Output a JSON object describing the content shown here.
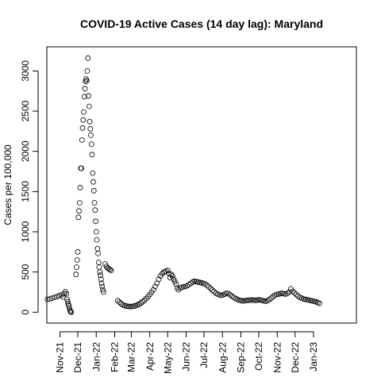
{
  "chart_data": {
    "type": "scatter",
    "title": "COVID-19 Active Cases (14 day lag): Maryland",
    "xlabel": "",
    "ylabel": "Cases per 100,000",
    "x_is_date": true,
    "xlim": [
      "2021-10-10",
      "2023-03-14"
    ],
    "ylim": [
      -135,
      3300
    ],
    "x_ticks": [
      {
        "label": "Nov-21",
        "date": "2021-11-01"
      },
      {
        "label": "Dec-21",
        "date": "2021-12-01"
      },
      {
        "label": "Jan-22",
        "date": "2022-01-01"
      },
      {
        "label": "Feb-22",
        "date": "2022-02-01"
      },
      {
        "label": "Mar-22",
        "date": "2022-03-01"
      },
      {
        "label": "Apr-22",
        "date": "2022-04-01"
      },
      {
        "label": "May-22",
        "date": "2022-05-01"
      },
      {
        "label": "Jun-22",
        "date": "2022-06-01"
      },
      {
        "label": "Jul-22",
        "date": "2022-07-01"
      },
      {
        "label": "Aug-22",
        "date": "2022-08-01"
      },
      {
        "label": "Sep-22",
        "date": "2022-09-01"
      },
      {
        "label": "Oct-22",
        "date": "2022-10-01"
      },
      {
        "label": "Nov-22",
        "date": "2022-11-01"
      },
      {
        "label": "Dec-22",
        "date": "2022-12-01"
      },
      {
        "label": "Jan-23",
        "date": "2023-01-01"
      }
    ],
    "y_ticks": [
      0,
      500,
      1000,
      1500,
      2000,
      2500,
      3000
    ],
    "y_tick_labels": [
      "0",
      "500",
      "1000",
      "1500",
      "2000",
      "2500",
      "3000"
    ],
    "grid": false,
    "legend": "none",
    "marker": "open-circle",
    "series": [
      {
        "values": [
          [
            "2021-10-11",
            160
          ],
          [
            "2021-10-15",
            165
          ],
          [
            "2021-10-19",
            175
          ],
          [
            "2021-10-23",
            185
          ],
          [
            "2021-10-27",
            195
          ],
          [
            "2021-10-31",
            205
          ],
          [
            "2021-11-04",
            215
          ],
          [
            "2021-11-06",
            190
          ],
          [
            "2021-11-08",
            230
          ],
          [
            "2021-11-10",
            255
          ],
          [
            "2021-11-12",
            230
          ],
          [
            "2021-11-13",
            160
          ],
          [
            "2021-11-14",
            130
          ],
          [
            "2021-11-15",
            100
          ],
          [
            "2021-11-16",
            80
          ],
          [
            "2021-11-17",
            50
          ],
          [
            "2021-11-18",
            20
          ],
          [
            "2021-11-19",
            5
          ],
          [
            "2021-11-20",
            0
          ],
          [
            "2021-11-28",
            470
          ],
          [
            "2021-11-29",
            560
          ],
          [
            "2021-11-30",
            650
          ],
          [
            "2021-12-01",
            750
          ],
          [
            "2021-12-02",
            1180
          ],
          [
            "2021-12-03",
            1260
          ],
          [
            "2021-12-04",
            1360
          ],
          [
            "2021-12-05",
            1550
          ],
          [
            "2021-12-06",
            1790
          ],
          [
            "2021-12-07",
            1790
          ],
          [
            "2021-12-08",
            2140
          ],
          [
            "2021-12-09",
            2290
          ],
          [
            "2021-12-10",
            2390
          ],
          [
            "2021-12-11",
            2490
          ],
          [
            "2021-12-12",
            2680
          ],
          [
            "2021-12-13",
            2780
          ],
          [
            "2021-12-14",
            2870
          ],
          [
            "2021-12-15",
            2900
          ],
          [
            "2021-12-16",
            2880
          ],
          [
            "2021-12-17",
            3000
          ],
          [
            "2021-12-18",
            3160
          ],
          [
            "2021-12-19",
            2690
          ],
          [
            "2021-12-20",
            2560
          ],
          [
            "2021-12-21",
            2370
          ],
          [
            "2021-12-22",
            2280
          ],
          [
            "2021-12-23",
            2200
          ],
          [
            "2021-12-24",
            2090
          ],
          [
            "2021-12-25",
            1960
          ],
          [
            "2021-12-26",
            1730
          ],
          [
            "2021-12-27",
            1620
          ],
          [
            "2021-12-28",
            1510
          ],
          [
            "2021-12-29",
            1360
          ],
          [
            "2021-12-30",
            1270
          ],
          [
            "2021-12-31",
            1130
          ],
          [
            "2022-01-01",
            1000
          ],
          [
            "2022-01-02",
            900
          ],
          [
            "2022-01-03",
            790
          ],
          [
            "2022-01-04",
            730
          ],
          [
            "2022-01-05",
            620
          ],
          [
            "2022-01-06",
            560
          ],
          [
            "2022-01-07",
            500
          ],
          [
            "2022-01-08",
            460
          ],
          [
            "2022-01-09",
            410
          ],
          [
            "2022-01-10",
            360
          ],
          [
            "2022-01-11",
            320
          ],
          [
            "2022-01-12",
            280
          ],
          [
            "2022-01-13",
            250
          ],
          [
            "2022-01-16",
            600
          ],
          [
            "2022-01-18",
            570
          ],
          [
            "2022-01-20",
            550
          ],
          [
            "2022-01-22",
            540
          ],
          [
            "2022-01-24",
            530
          ],
          [
            "2022-01-26",
            520
          ],
          [
            "2022-02-06",
            145
          ],
          [
            "2022-02-09",
            125
          ],
          [
            "2022-02-12",
            105
          ],
          [
            "2022-02-15",
            90
          ],
          [
            "2022-02-18",
            80
          ],
          [
            "2022-02-21",
            75
          ],
          [
            "2022-02-24",
            72
          ],
          [
            "2022-02-27",
            70
          ],
          [
            "2022-03-02",
            72
          ],
          [
            "2022-03-05",
            75
          ],
          [
            "2022-03-08",
            80
          ],
          [
            "2022-03-11",
            90
          ],
          [
            "2022-03-14",
            100
          ],
          [
            "2022-03-17",
            115
          ],
          [
            "2022-03-20",
            130
          ],
          [
            "2022-03-23",
            150
          ],
          [
            "2022-03-26",
            170
          ],
          [
            "2022-03-29",
            195
          ],
          [
            "2022-04-01",
            220
          ],
          [
            "2022-04-04",
            250
          ],
          [
            "2022-04-07",
            280
          ],
          [
            "2022-04-10",
            320
          ],
          [
            "2022-04-13",
            360
          ],
          [
            "2022-04-16",
            410
          ],
          [
            "2022-04-19",
            450
          ],
          [
            "2022-04-22",
            480
          ],
          [
            "2022-04-25",
            500
          ],
          [
            "2022-04-28",
            510
          ],
          [
            "2022-05-01",
            520
          ],
          [
            "2022-05-03",
            480
          ],
          [
            "2022-05-05",
            430
          ],
          [
            "2022-05-07",
            470
          ],
          [
            "2022-05-09",
            450
          ],
          [
            "2022-05-11",
            410
          ],
          [
            "2022-05-13",
            380
          ],
          [
            "2022-05-15",
            350
          ],
          [
            "2022-05-17",
            300
          ],
          [
            "2022-05-19",
            280
          ],
          [
            "2022-05-22",
            300
          ],
          [
            "2022-05-25",
            310
          ],
          [
            "2022-05-28",
            315
          ],
          [
            "2022-05-31",
            320
          ],
          [
            "2022-06-03",
            330
          ],
          [
            "2022-06-06",
            345
          ],
          [
            "2022-06-09",
            360
          ],
          [
            "2022-06-12",
            375
          ],
          [
            "2022-06-15",
            385
          ],
          [
            "2022-06-18",
            380
          ],
          [
            "2022-06-21",
            375
          ],
          [
            "2022-06-24",
            370
          ],
          [
            "2022-06-27",
            365
          ],
          [
            "2022-06-30",
            358
          ],
          [
            "2022-07-03",
            350
          ],
          [
            "2022-07-06",
            335
          ],
          [
            "2022-07-09",
            315
          ],
          [
            "2022-07-12",
            295
          ],
          [
            "2022-07-15",
            275
          ],
          [
            "2022-07-18",
            255
          ],
          [
            "2022-07-21",
            235
          ],
          [
            "2022-07-24",
            225
          ],
          [
            "2022-07-27",
            215
          ],
          [
            "2022-07-30",
            210
          ],
          [
            "2022-08-02",
            215
          ],
          [
            "2022-08-05",
            225
          ],
          [
            "2022-08-08",
            235
          ],
          [
            "2022-08-11",
            230
          ],
          [
            "2022-08-14",
            215
          ],
          [
            "2022-08-17",
            200
          ],
          [
            "2022-08-20",
            185
          ],
          [
            "2022-08-23",
            170
          ],
          [
            "2022-08-26",
            160
          ],
          [
            "2022-08-29",
            150
          ],
          [
            "2022-09-01",
            145
          ],
          [
            "2022-09-04",
            140
          ],
          [
            "2022-09-07",
            142
          ],
          [
            "2022-09-10",
            145
          ],
          [
            "2022-09-13",
            148
          ],
          [
            "2022-09-16",
            150
          ],
          [
            "2022-09-19",
            152
          ],
          [
            "2022-09-22",
            150
          ],
          [
            "2022-09-25",
            148
          ],
          [
            "2022-09-28",
            150
          ],
          [
            "2022-10-01",
            155
          ],
          [
            "2022-10-04",
            150
          ],
          [
            "2022-10-07",
            145
          ],
          [
            "2022-10-10",
            140
          ],
          [
            "2022-10-13",
            135
          ],
          [
            "2022-10-16",
            145
          ],
          [
            "2022-10-19",
            160
          ],
          [
            "2022-10-22",
            175
          ],
          [
            "2022-10-25",
            195
          ],
          [
            "2022-10-28",
            210
          ],
          [
            "2022-10-31",
            220
          ],
          [
            "2022-11-03",
            225
          ],
          [
            "2022-11-06",
            230
          ],
          [
            "2022-11-09",
            235
          ],
          [
            "2022-11-12",
            230
          ],
          [
            "2022-11-15",
            225
          ],
          [
            "2022-11-18",
            235
          ],
          [
            "2022-11-21",
            250
          ],
          [
            "2022-11-24",
            290
          ],
          [
            "2022-11-27",
            260
          ],
          [
            "2022-11-30",
            240
          ],
          [
            "2022-12-03",
            220
          ],
          [
            "2022-12-06",
            200
          ],
          [
            "2022-12-09",
            185
          ],
          [
            "2022-12-12",
            175
          ],
          [
            "2022-12-15",
            165
          ],
          [
            "2022-12-18",
            160
          ],
          [
            "2022-12-21",
            155
          ],
          [
            "2022-12-24",
            150
          ],
          [
            "2022-12-27",
            145
          ],
          [
            "2022-12-30",
            140
          ],
          [
            "2023-01-02",
            135
          ],
          [
            "2023-01-05",
            130
          ],
          [
            "2023-01-08",
            120
          ],
          [
            "2023-01-11",
            110
          ]
        ]
      }
    ]
  }
}
